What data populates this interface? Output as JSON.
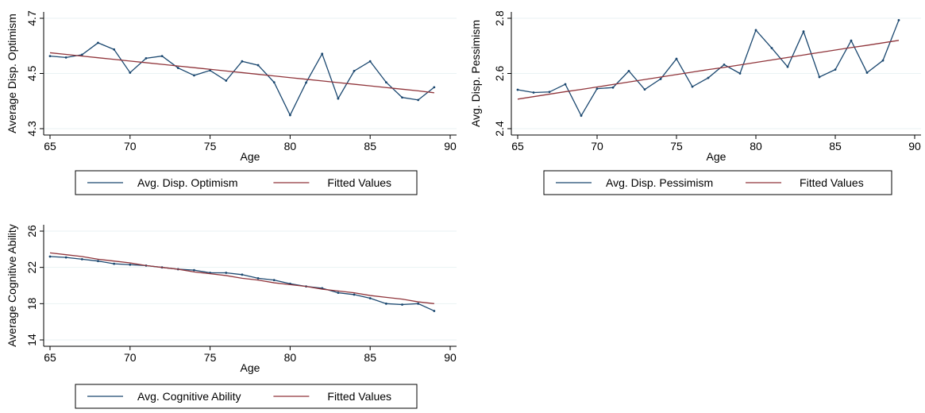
{
  "colors": {
    "series": "#1a476f",
    "fitted": "#90353b",
    "grid": "#eaf2f3",
    "axis": "#000000"
  },
  "chart_data": [
    {
      "type": "line",
      "xlabel": "Age",
      "ylabel": "Average Disp. Optimism",
      "xlim": [
        65,
        90
      ],
      "ylim": [
        4.3,
        4.7
      ],
      "xticks": [
        "65",
        "70",
        "75",
        "80",
        "85",
        "90"
      ],
      "yticks": [
        "4.3",
        "4.5",
        "4.7"
      ],
      "grid": true,
      "legend_position": "bottom",
      "x": [
        65,
        66,
        67,
        68,
        69,
        70,
        71,
        72,
        73,
        74,
        75,
        76,
        77,
        78,
        79,
        80,
        81,
        82,
        83,
        84,
        85,
        86,
        87,
        88,
        89
      ],
      "series": [
        {
          "name": "Avg. Disp. Optimism",
          "kind": "line",
          "values": [
            4.563,
            4.558,
            4.568,
            4.611,
            4.587,
            4.503,
            4.555,
            4.563,
            4.52,
            4.493,
            4.511,
            4.474,
            4.544,
            4.53,
            4.468,
            4.349,
            4.467,
            4.571,
            4.409,
            4.509,
            4.544,
            4.468,
            4.413,
            4.404,
            4.45
          ]
        },
        {
          "name": "Fitted Values",
          "kind": "fit",
          "values": [
            4.575,
            4.569,
            4.563,
            4.557,
            4.551,
            4.545,
            4.539,
            4.533,
            4.527,
            4.521,
            4.515,
            4.509,
            4.503,
            4.497,
            4.491,
            4.485,
            4.479,
            4.473,
            4.467,
            4.461,
            4.455,
            4.449,
            4.443,
            4.437,
            4.43
          ]
        }
      ]
    },
    {
      "type": "line",
      "xlabel": "Age",
      "ylabel": "Avg. Disp. Pessimism",
      "xlim": [
        65,
        90
      ],
      "ylim": [
        2.4,
        2.8
      ],
      "xticks": [
        "65",
        "70",
        "75",
        "80",
        "85",
        "90"
      ],
      "yticks": [
        "2.4",
        "2.6",
        "2.8"
      ],
      "grid": true,
      "legend_position": "bottom",
      "x": [
        65,
        66,
        67,
        68,
        69,
        70,
        71,
        72,
        73,
        74,
        75,
        76,
        77,
        78,
        79,
        80,
        81,
        82,
        83,
        84,
        85,
        86,
        87,
        88,
        89
      ],
      "series": [
        {
          "name": "Avg. Disp. Pessimism",
          "kind": "line",
          "values": [
            2.541,
            2.531,
            2.533,
            2.561,
            2.447,
            2.545,
            2.549,
            2.609,
            2.542,
            2.58,
            2.653,
            2.552,
            2.584,
            2.632,
            2.6,
            2.757,
            2.692,
            2.624,
            2.752,
            2.587,
            2.614,
            2.719,
            2.603,
            2.647,
            2.793
          ]
        },
        {
          "name": "Fitted Values",
          "kind": "fit",
          "values": [
            2.507,
            2.516,
            2.525,
            2.534,
            2.542,
            2.551,
            2.56,
            2.569,
            2.578,
            2.587,
            2.596,
            2.605,
            2.614,
            2.622,
            2.631,
            2.64,
            2.649,
            2.658,
            2.667,
            2.676,
            2.685,
            2.694,
            2.702,
            2.711,
            2.72
          ]
        }
      ]
    },
    {
      "type": "line",
      "xlabel": "Age",
      "ylabel": "Average Cognitive Ability",
      "xlim": [
        65,
        90
      ],
      "ylim": [
        14,
        26
      ],
      "xticks": [
        "65",
        "70",
        "75",
        "80",
        "85",
        "90"
      ],
      "yticks": [
        "14",
        "18",
        "22",
        "26"
      ],
      "grid": true,
      "legend_position": "bottom",
      "x": [
        65,
        66,
        67,
        68,
        69,
        70,
        71,
        72,
        73,
        74,
        75,
        76,
        77,
        78,
        79,
        80,
        81,
        82,
        83,
        84,
        85,
        86,
        87,
        88,
        89
      ],
      "series": [
        {
          "name": "Avg. Cognitive Ability",
          "kind": "line",
          "values": [
            23.2,
            23.1,
            22.9,
            22.7,
            22.4,
            22.3,
            22.2,
            22.0,
            21.8,
            21.7,
            21.4,
            21.4,
            21.2,
            20.8,
            20.6,
            20.2,
            19.9,
            19.7,
            19.2,
            19.0,
            18.6,
            18.0,
            17.9,
            18.0,
            17.2
          ]
        },
        {
          "name": "Fitted Values",
          "kind": "fit",
          "values": [
            23.6,
            23.4,
            23.2,
            22.9,
            22.7,
            22.5,
            22.2,
            22.0,
            21.8,
            21.5,
            21.3,
            21.1,
            20.8,
            20.6,
            20.3,
            20.1,
            19.9,
            19.6,
            19.4,
            19.2,
            18.9,
            18.7,
            18.5,
            18.2,
            18.0
          ]
        }
      ]
    }
  ]
}
